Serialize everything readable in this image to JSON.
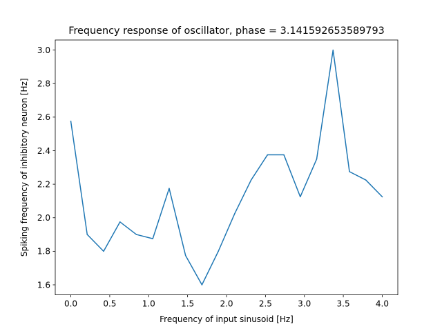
{
  "chart_data": {
    "type": "line",
    "title": "Frequency response of oscillator, phase = 3.141592653589793",
    "xlabel": "Frequency of input sinusoid [Hz]",
    "ylabel": "Spiking frequency of inhibitory neuron [Hz]",
    "xlim": [
      -0.2,
      4.2
    ],
    "ylim": [
      1.54,
      3.06
    ],
    "xticks": [
      0.0,
      0.5,
      1.0,
      1.5,
      2.0,
      2.5,
      3.0,
      3.5,
      4.0
    ],
    "xtick_labels": [
      "0.0",
      "0.5",
      "1.0",
      "1.5",
      "2.0",
      "2.5",
      "3.0",
      "3.5",
      "4.0"
    ],
    "yticks": [
      1.6,
      1.8,
      2.0,
      2.2,
      2.4,
      2.6,
      2.8,
      3.0
    ],
    "ytick_labels": [
      "1.6",
      "1.8",
      "2.0",
      "2.2",
      "2.4",
      "2.6",
      "2.8",
      "3.0"
    ],
    "grid": false,
    "legend": "none",
    "series": [
      {
        "color": "#1f77b4",
        "x": [
          0.0,
          0.2105,
          0.4211,
          0.6316,
          0.8421,
          1.0526,
          1.2632,
          1.4737,
          1.6842,
          1.8947,
          2.1053,
          2.3158,
          2.5263,
          2.7368,
          2.9474,
          3.1579,
          3.3684,
          3.5789,
          3.7895,
          4.0
        ],
        "values": [
          2.575,
          1.9,
          1.8,
          1.975,
          1.9,
          1.875,
          2.175,
          1.775,
          1.6,
          1.8,
          2.025,
          2.225,
          2.375,
          2.375,
          2.125,
          2.35,
          3.0,
          2.275,
          2.225,
          2.125
        ]
      }
    ]
  }
}
